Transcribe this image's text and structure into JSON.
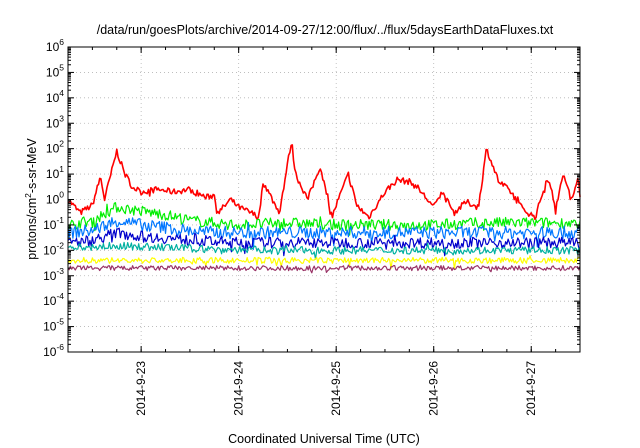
{
  "chart_data": {
    "type": "line",
    "title": "/data/run/goesPlots/archive/2014-09-27/12:00/flux/../flux/5daysEarthDataFluxes.txt",
    "xlabel": "Coordinated Universal Time (UTC)",
    "ylabel": "protons/cm2-s-sr-MeV",
    "ylabel_parts": {
      "pre": "protons/cm",
      "sup": "2",
      "post": "-s-sr-MeV"
    },
    "yscale": "log",
    "ylim": [
      1e-06,
      1000000.0
    ],
    "xlim": [
      "2014-09-22 06:00",
      "2014-09-27 12:00"
    ],
    "y_ticks": [
      {
        "value": 1e-06,
        "base": "10",
        "exp": "-6"
      },
      {
        "value": 1e-05,
        "base": "10",
        "exp": "-5"
      },
      {
        "value": 0.0001,
        "base": "10",
        "exp": "-4"
      },
      {
        "value": 0.001,
        "base": "10",
        "exp": "-3"
      },
      {
        "value": 0.01,
        "base": "10",
        "exp": "-2"
      },
      {
        "value": 0.1,
        "base": "10",
        "exp": "-1"
      },
      {
        "value": 1,
        "base": "10",
        "exp": "0"
      },
      {
        "value": 10,
        "base": "10",
        "exp": "1"
      },
      {
        "value": 100,
        "base": "10",
        "exp": "2"
      },
      {
        "value": 1000,
        "base": "10",
        "exp": "3"
      },
      {
        "value": 10000,
        "base": "10",
        "exp": "4"
      },
      {
        "value": 100000,
        "base": "10",
        "exp": "5"
      },
      {
        "value": 1000000,
        "base": "10",
        "exp": "6"
      }
    ],
    "x_ticks": [
      {
        "date": "2014-09-23 00:00",
        "label": "2014-9-23"
      },
      {
        "date": "2014-09-24 00:00",
        "label": "2014-9-24"
      },
      {
        "date": "2014-09-25 00:00",
        "label": "2014-9-25"
      },
      {
        "date": "2014-09-26 00:00",
        "label": "2014-9-26"
      },
      {
        "date": "2014-09-27 00:00",
        "label": "2014-9-27"
      }
    ],
    "grid": true,
    "series": [
      {
        "color": "#ff0000",
        "x": [
          "2014-09-22 06:00",
          "2014-09-22 09:00",
          "2014-09-22 12:00",
          "2014-09-22 14:00",
          "2014-09-22 15:00",
          "2014-09-22 18:00",
          "2014-09-22 20:00",
          "2014-09-22 22:00",
          "2014-09-23 00:00",
          "2014-09-23 04:00",
          "2014-09-23 08:00",
          "2014-09-23 12:00",
          "2014-09-23 16:00",
          "2014-09-23 18:00",
          "2014-09-23 19:00",
          "2014-09-23 22:00",
          "2014-09-24 00:00",
          "2014-09-24 03:00",
          "2014-09-24 05:00",
          "2014-09-24 06:00",
          "2014-09-24 10:00",
          "2014-09-24 13:00",
          "2014-09-24 14:00",
          "2014-09-24 17:00",
          "2014-09-24 20:00",
          "2014-09-24 23:00",
          "2014-09-25 00:00",
          "2014-09-25 03:00",
          "2014-09-25 05:00",
          "2014-09-25 08:00",
          "2014-09-25 12:00",
          "2014-09-25 15:00",
          "2014-09-25 18:00",
          "2014-09-25 20:00",
          "2014-09-26 00:00",
          "2014-09-26 02:00",
          "2014-09-26 05:00",
          "2014-09-26 08:00",
          "2014-09-26 11:00",
          "2014-09-26 13:00",
          "2014-09-26 16:00",
          "2014-09-26 19:00",
          "2014-09-26 22:00",
          "2014-09-27 01:00",
          "2014-09-27 04:00",
          "2014-09-27 06:00",
          "2014-09-27 08:00",
          "2014-09-27 10:00",
          "2014-09-27 11:30",
          "2014-09-27 12:00"
        ],
        "values": [
          1.0,
          0.3,
          0.6,
          8.0,
          1.0,
          80,
          10,
          3,
          2,
          2.5,
          2,
          2.5,
          1.2,
          1.5,
          0.3,
          1.0,
          0.5,
          0.3,
          0.2,
          5,
          0.3,
          200,
          10,
          1,
          20,
          0.2,
          0.6,
          10,
          0.6,
          0.2,
          2,
          6,
          5,
          3,
          0.5,
          2,
          0.3,
          0.8,
          0.5,
          100,
          5,
          2,
          0.4,
          0.2,
          8,
          0.5,
          10,
          0.8,
          10,
          1.5
        ]
      },
      {
        "color": "#00ee00",
        "x": [
          "2014-09-22 06:00",
          "2014-09-22 12:00",
          "2014-09-22 18:00",
          "2014-09-23 00:00",
          "2014-09-23 06:00",
          "2014-09-23 12:00",
          "2014-09-23 18:00",
          "2014-09-24 00:00",
          "2014-09-24 12:00",
          "2014-09-25 00:00",
          "2014-09-25 12:00",
          "2014-09-26 00:00",
          "2014-09-26 12:00",
          "2014-09-27 00:00",
          "2014-09-27 12:00"
        ],
        "values": [
          0.1,
          0.15,
          0.5,
          0.35,
          0.25,
          0.15,
          0.12,
          0.1,
          0.12,
          0.1,
          0.1,
          0.1,
          0.12,
          0.12,
          0.12
        ]
      },
      {
        "color": "#0077ff",
        "x": [
          "2014-09-22 06:00",
          "2014-09-22 12:00",
          "2014-09-22 18:00",
          "2014-09-23 00:00",
          "2014-09-23 06:00",
          "2014-09-23 12:00",
          "2014-09-23 18:00",
          "2014-09-24 00:00",
          "2014-09-24 12:00",
          "2014-09-25 00:00",
          "2014-09-25 12:00",
          "2014-09-26 00:00",
          "2014-09-26 12:00",
          "2014-09-27 00:00",
          "2014-09-27 12:00"
        ],
        "values": [
          0.05,
          0.06,
          0.15,
          0.1,
          0.08,
          0.06,
          0.05,
          0.05,
          0.05,
          0.05,
          0.05,
          0.05,
          0.05,
          0.05,
          0.05
        ]
      },
      {
        "color": "#0000cc",
        "x": [
          "2014-09-22 06:00",
          "2014-09-22 12:00",
          "2014-09-22 18:00",
          "2014-09-23 00:00",
          "2014-09-23 06:00",
          "2014-09-23 12:00",
          "2014-09-23 18:00",
          "2014-09-24 00:00",
          "2014-09-24 12:00",
          "2014-09-25 00:00",
          "2014-09-25 12:00",
          "2014-09-26 00:00",
          "2014-09-26 12:00",
          "2014-09-27 00:00",
          "2014-09-27 12:00"
        ],
        "values": [
          0.02,
          0.025,
          0.05,
          0.035,
          0.03,
          0.025,
          0.022,
          0.02,
          0.02,
          0.02,
          0.02,
          0.02,
          0.02,
          0.02,
          0.02
        ]
      },
      {
        "color": "#00b0a0",
        "x": [
          "2014-09-22 06:00",
          "2014-09-22 18:00",
          "2014-09-23 06:00",
          "2014-09-23 18:00",
          "2014-09-24 12:00",
          "2014-09-25 12:00",
          "2014-09-26 12:00",
          "2014-09-27 12:00"
        ],
        "values": [
          0.012,
          0.015,
          0.013,
          0.011,
          0.01,
          0.01,
          0.01,
          0.01
        ]
      },
      {
        "color": "#ffff00",
        "x": [
          "2014-09-22 06:00",
          "2014-09-23 00:00",
          "2014-09-24 00:00",
          "2014-09-25 00:00",
          "2014-09-26 00:00",
          "2014-09-27 00:00",
          "2014-09-27 12:00"
        ],
        "values": [
          0.004,
          0.004,
          0.004,
          0.004,
          0.004,
          0.004,
          0.004
        ]
      },
      {
        "color": "#993366",
        "x": [
          "2014-09-22 06:00",
          "2014-09-23 00:00",
          "2014-09-24 00:00",
          "2014-09-25 00:00",
          "2014-09-26 00:00",
          "2014-09-27 00:00",
          "2014-09-27 12:00"
        ],
        "values": [
          0.002,
          0.002,
          0.002,
          0.002,
          0.002,
          0.002,
          0.002
        ]
      }
    ]
  }
}
